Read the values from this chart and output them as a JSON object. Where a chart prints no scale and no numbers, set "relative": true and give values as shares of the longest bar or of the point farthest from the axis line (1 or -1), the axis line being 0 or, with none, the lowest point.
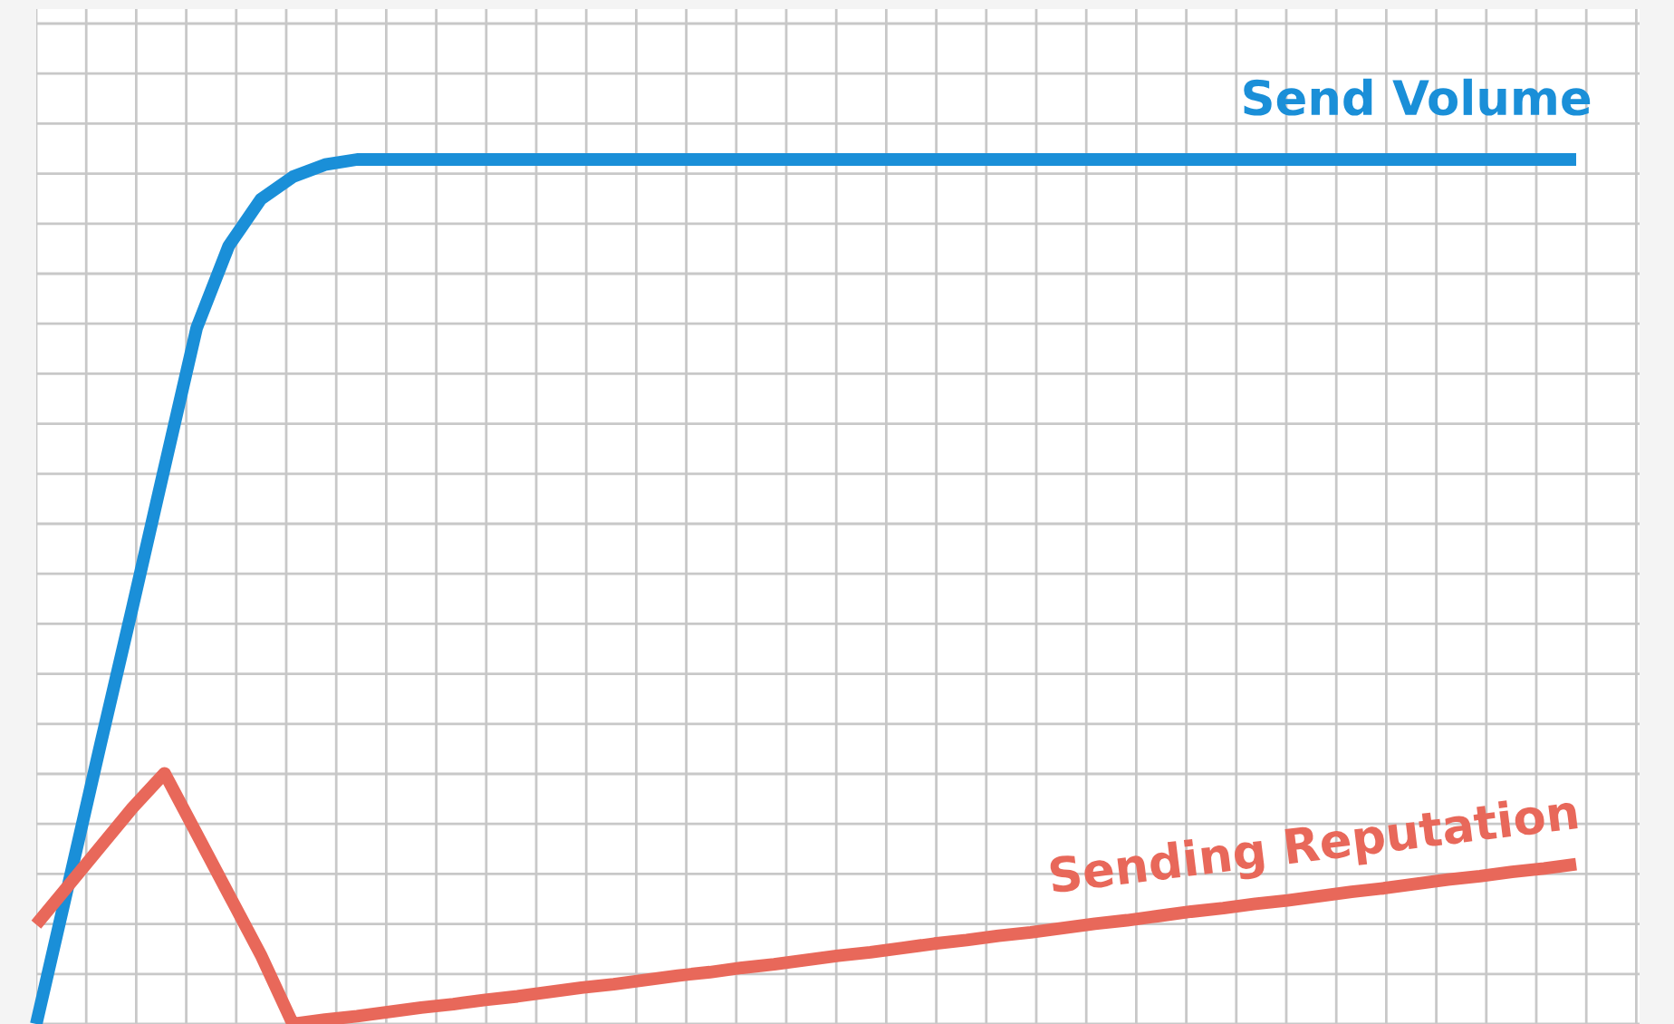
{
  "chart_data": {
    "type": "line",
    "relative": true,
    "grid": true,
    "legend": false,
    "marker": "none",
    "line_style": "solid",
    "categories": [
      null,
      null,
      null,
      null,
      null,
      null,
      null,
      null,
      null,
      null,
      null,
      null,
      null,
      null,
      null,
      null,
      null,
      null,
      null,
      null,
      null,
      null,
      null,
      null,
      null,
      null,
      null,
      null,
      null,
      null,
      null,
      null,
      null,
      null,
      null,
      null,
      null,
      null,
      null,
      null,
      null,
      null,
      null,
      null,
      null,
      null,
      null,
      null,
      null
    ],
    "series": [
      {
        "name": "Send Volume",
        "color": "#1a8fd8",
        "values": [
          0,
          0.161,
          0.323,
          0.482,
          0.644,
          0.805,
          0.9,
          0.954,
          0.98,
          0.994,
          1,
          1,
          1,
          1,
          1,
          1,
          1,
          1,
          1,
          1,
          1,
          1,
          1,
          1,
          1,
          1,
          1,
          1,
          1,
          1,
          1,
          1,
          1,
          1,
          1,
          1,
          1,
          1,
          1,
          1,
          1,
          1,
          1,
          1,
          1,
          1,
          1,
          1,
          1
        ]
      },
      {
        "name": "Sending Reputation",
        "color": "#e8685a",
        "values": [
          0.115,
          0.16,
          0.205,
          0.25,
          0.29,
          0.22,
          0.15,
          0.08,
          0,
          0.005,
          0.009,
          0.014,
          0.019,
          0.023,
          0.028,
          0.032,
          0.037,
          0.042,
          0.046,
          0.051,
          0.056,
          0.06,
          0.065,
          0.069,
          0.074,
          0.079,
          0.083,
          0.088,
          0.093,
          0.097,
          0.102,
          0.106,
          0.111,
          0.116,
          0.12,
          0.125,
          0.13,
          0.134,
          0.139,
          0.143,
          0.148,
          0.153,
          0.157,
          0.162,
          0.167,
          0.171,
          0.176,
          0.18,
          0.185
        ]
      }
    ]
  }
}
